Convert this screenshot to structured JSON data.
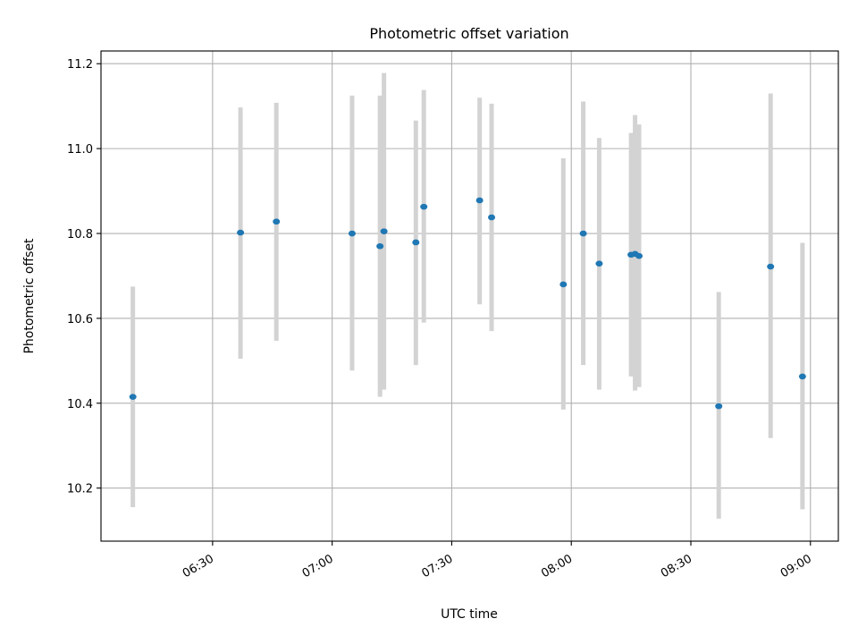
{
  "chart_data": {
    "type": "scatter",
    "title": "Photometric offset variation",
    "xlabel": "UTC time",
    "ylabel": "Photometric offset",
    "xlim": [
      "06:02",
      "09:07"
    ],
    "ylim": [
      10.075,
      11.23
    ],
    "grid": true,
    "x_ticks": [
      "06:30",
      "07:00",
      "07:30",
      "08:00",
      "08:30",
      "09:00"
    ],
    "y_ticks": [
      "10.2",
      "10.4",
      "10.6",
      "10.8",
      "11.0",
      "11.2"
    ],
    "colors": {
      "point": "#1f77b4",
      "errorbar": "#d3d3d3",
      "grid": "#b0b0b0"
    },
    "points": [
      {
        "x": "06:10",
        "y": 10.415,
        "ymin": 10.155,
        "ymax": 10.675
      },
      {
        "x": "06:37",
        "y": 10.802,
        "ymin": 10.505,
        "ymax": 11.097
      },
      {
        "x": "06:46",
        "y": 10.828,
        "ymin": 10.547,
        "ymax": 11.108
      },
      {
        "x": "07:05",
        "y": 10.8,
        "ymin": 10.477,
        "ymax": 11.125
      },
      {
        "x": "07:12",
        "y": 10.77,
        "ymin": 10.415,
        "ymax": 11.125
      },
      {
        "x": "07:13",
        "y": 10.805,
        "ymin": 10.432,
        "ymax": 11.178
      },
      {
        "x": "07:21",
        "y": 10.779,
        "ymin": 10.49,
        "ymax": 11.066
      },
      {
        "x": "07:23",
        "y": 10.863,
        "ymin": 10.59,
        "ymax": 11.138
      },
      {
        "x": "07:37",
        "y": 10.878,
        "ymin": 10.633,
        "ymax": 11.12
      },
      {
        "x": "07:40",
        "y": 10.838,
        "ymin": 10.57,
        "ymax": 11.106
      },
      {
        "x": "07:58",
        "y": 10.68,
        "ymin": 10.385,
        "ymax": 10.977
      },
      {
        "x": "08:03",
        "y": 10.8,
        "ymin": 10.49,
        "ymax": 11.111
      },
      {
        "x": "08:07",
        "y": 10.729,
        "ymin": 10.432,
        "ymax": 11.025
      },
      {
        "x": "08:15",
        "y": 10.75,
        "ymin": 10.463,
        "ymax": 11.037
      },
      {
        "x": "08:16",
        "y": 10.752,
        "ymin": 10.43,
        "ymax": 11.079
      },
      {
        "x": "08:17",
        "y": 10.747,
        "ymin": 10.438,
        "ymax": 11.057
      },
      {
        "x": "08:37",
        "y": 10.393,
        "ymin": 10.128,
        "ymax": 10.662
      },
      {
        "x": "08:50",
        "y": 10.722,
        "ymin": 10.318,
        "ymax": 11.13
      },
      {
        "x": "08:58",
        "y": 10.463,
        "ymin": 10.15,
        "ymax": 10.778
      }
    ]
  }
}
